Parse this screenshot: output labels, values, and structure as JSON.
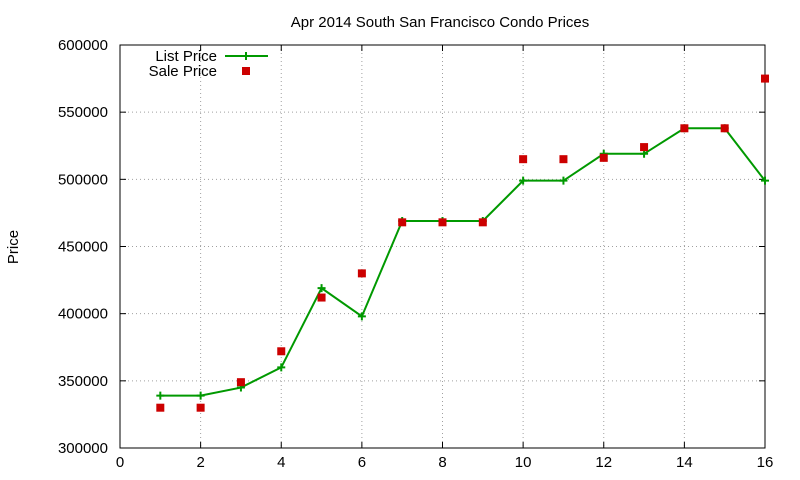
{
  "chart_data": {
    "type": "line",
    "title": "Apr 2014 South San Francisco Condo Prices",
    "xlabel": "",
    "ylabel": "Price",
    "xlim": [
      0,
      16
    ],
    "ylim": [
      300000,
      600000
    ],
    "x_ticks": [
      0,
      2,
      4,
      6,
      8,
      10,
      12,
      14,
      16
    ],
    "y_ticks": [
      300000,
      350000,
      400000,
      450000,
      500000,
      550000,
      600000
    ],
    "x_tick_labels": [
      "0",
      "2",
      "4",
      "6",
      "8",
      "10",
      "12",
      "14",
      "16"
    ],
    "y_tick_labels": [
      "300000",
      "350000",
      "400000",
      "450000",
      "500000",
      "550000",
      "600000"
    ],
    "grid": true,
    "legend_position": "top-left",
    "series": [
      {
        "name": "List Price",
        "type": "line",
        "color": "#009900",
        "marker": "plus",
        "x": [
          1,
          2,
          3,
          4,
          5,
          6,
          7,
          8,
          9,
          10,
          11,
          12,
          13,
          14,
          15,
          16
        ],
        "y": [
          339000,
          339000,
          345000,
          360000,
          419000,
          398000,
          469000,
          469000,
          469000,
          499000,
          499000,
          519000,
          519000,
          538000,
          538000,
          499000
        ]
      },
      {
        "name": "Sale Price",
        "type": "scatter",
        "color": "#cc0000",
        "marker": "square",
        "x": [
          1,
          2,
          3,
          4,
          5,
          6,
          7,
          8,
          9,
          10,
          11,
          12,
          13,
          14,
          15,
          16
        ],
        "y": [
          330000,
          330000,
          349000,
          372000,
          412000,
          430000,
          468000,
          468000,
          468000,
          515000,
          515000,
          516000,
          524000,
          538000,
          538000,
          575000
        ]
      }
    ]
  }
}
